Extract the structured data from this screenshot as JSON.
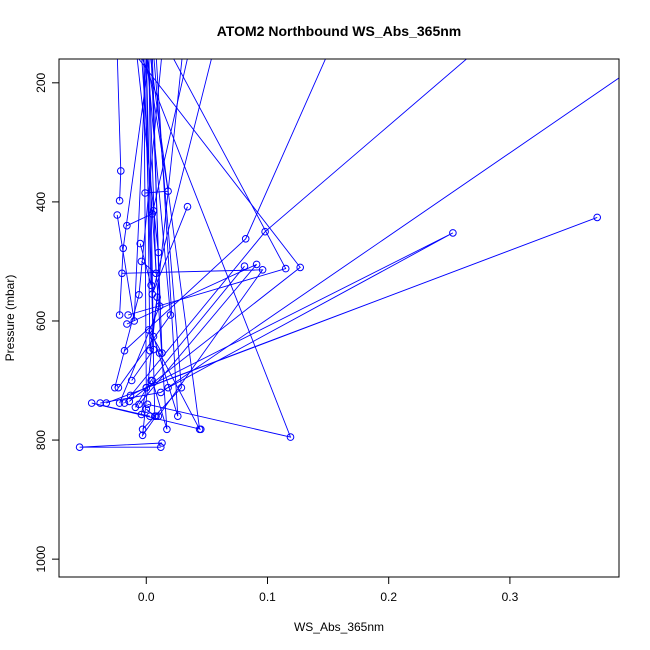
{
  "chart_data": {
    "type": "line",
    "title": "ATOM2 Northbound WS_Abs_365nm",
    "xlabel": "WS_Abs_365nm",
    "ylabel": "Pressure (mbar)",
    "xlim": [
      -0.072,
      0.39
    ],
    "ylim": [
      1030,
      160
    ],
    "y_reversed": true,
    "x_ticks": [
      0.0,
      0.1,
      0.2,
      0.3
    ],
    "x_tick_labels": [
      "0.0",
      "0.1",
      "0.2",
      "0.3"
    ],
    "y_ticks": [
      200,
      400,
      600,
      800,
      1000
    ],
    "y_tick_labels": [
      "200",
      "400",
      "600",
      "800",
      "1000"
    ],
    "grid": false,
    "legend": "none",
    "series_color": "#0000ff",
    "marker": "open-circle",
    "series": [
      {
        "x": [
          0.013,
          -0.055,
          0.012
        ],
        "y": [
          805,
          812,
          812
        ]
      },
      {
        "x": [
          0.003,
          -0.045,
          0.045
        ],
        "y": [
          760,
          738,
          782
        ]
      },
      {
        "x": [
          -0.038,
          0.012,
          0.42
        ],
        "y": [
          738,
          720,
          150
        ]
      },
      {
        "x": [
          -0.033,
          0.372,
          0.0
        ],
        "y": [
          738,
          426,
          712
        ]
      },
      {
        "x": [
          -0.022,
          0.011,
          0.005
        ],
        "y": [
          738,
          575,
          150
        ]
      },
      {
        "x": [
          -0.018,
          0.098,
          0.27
        ],
        "y": [
          738,
          450,
          150
        ]
      },
      {
        "x": [
          -0.026,
          -0.006,
          0.013
        ],
        "y": [
          712,
          556,
          150
        ]
      },
      {
        "x": [
          -0.023,
          0.02,
          0.0
        ],
        "y": [
          712,
          590,
          150
        ]
      },
      {
        "x": [
          -0.014,
          0.127,
          -0.01
        ],
        "y": [
          735,
          510,
          150
        ]
      },
      {
        "x": [
          -0.013,
          0.253,
          0.018
        ],
        "y": [
          725,
          452,
          712
        ]
      },
      {
        "x": [
          -0.012,
          0.006,
          0.002
        ],
        "y": [
          700,
          648,
          150
        ]
      },
      {
        "x": [
          -0.018,
          0.082,
          0.15
        ],
        "y": [
          650,
          462,
          150
        ]
      },
      {
        "x": [
          -0.016,
          0.091,
          -0.006
        ],
        "y": [
          605,
          505,
          740
        ]
      },
      {
        "x": [
          -0.015,
          0.115,
          0.02
        ],
        "y": [
          590,
          512,
          150
        ]
      },
      {
        "x": [
          -0.022,
          -0.019,
          0.003
        ],
        "y": [
          590,
          478,
          150
        ]
      },
      {
        "x": [
          -0.02,
          0.096,
          0.01
        ],
        "y": [
          520,
          514,
          760
        ]
      },
      {
        "x": [
          -0.016,
          0.005,
          0.035
        ],
        "y": [
          440,
          420,
          150
        ]
      },
      {
        "x": [
          -0.022,
          -0.021,
          -0.024
        ],
        "y": [
          398,
          348,
          150
        ]
      },
      {
        "x": [
          -0.024,
          -0.01,
          0.0
        ],
        "y": [
          422,
          600,
          150
        ]
      },
      {
        "x": [
          -0.001,
          0.018,
          0.0
        ],
        "y": [
          385,
          382,
          150
        ]
      },
      {
        "x": [
          0.034,
          0.005,
          0.055
        ],
        "y": [
          408,
          555,
          150
        ]
      },
      {
        "x": [
          -0.005,
          0.004,
          -0.002
        ],
        "y": [
          470,
          540,
          150
        ]
      },
      {
        "x": [
          -0.004,
          0.008,
          0.002
        ],
        "y": [
          500,
          520,
          150
        ]
      },
      {
        "x": [
          0.006,
          0.01,
          -0.008
        ],
        "y": [
          415,
          485,
          150
        ]
      },
      {
        "x": [
          0.009,
          0.003,
          0.0
        ],
        "y": [
          560,
          650,
          150
        ]
      },
      {
        "x": [
          0.002,
          0.013,
          0.004
        ],
        "y": [
          615,
          654,
          150
        ]
      },
      {
        "x": [
          0.011,
          0.044,
          0.003
        ],
        "y": [
          654,
          782,
          150
        ]
      },
      {
        "x": [
          0.006,
          0.026,
          0.008
        ],
        "y": [
          626,
          760,
          150
        ]
      },
      {
        "x": [
          0.005,
          0.017,
          -0.004
        ],
        "y": [
          700,
          782,
          150
        ]
      },
      {
        "x": [
          0.001,
          0.119,
          -0.005
        ],
        "y": [
          740,
          795,
          150
        ]
      },
      {
        "x": [
          0.008,
          -0.003,
          0.03
        ],
        "y": [
          760,
          792,
          150
        ]
      },
      {
        "x": [
          -0.009,
          0.004,
          0.081
        ],
        "y": [
          745,
          700,
          508
        ]
      },
      {
        "x": [
          -0.004,
          0.0,
          -0.002
        ],
        "y": [
          757,
          712,
          150
        ]
      },
      {
        "x": [
          -0.003,
          0.029,
          0.006
        ],
        "y": [
          782,
          712,
          150
        ]
      },
      {
        "x": [
          0.0,
          0.007,
          0.0
        ],
        "y": [
          748,
          760,
          150
        ]
      }
    ]
  }
}
